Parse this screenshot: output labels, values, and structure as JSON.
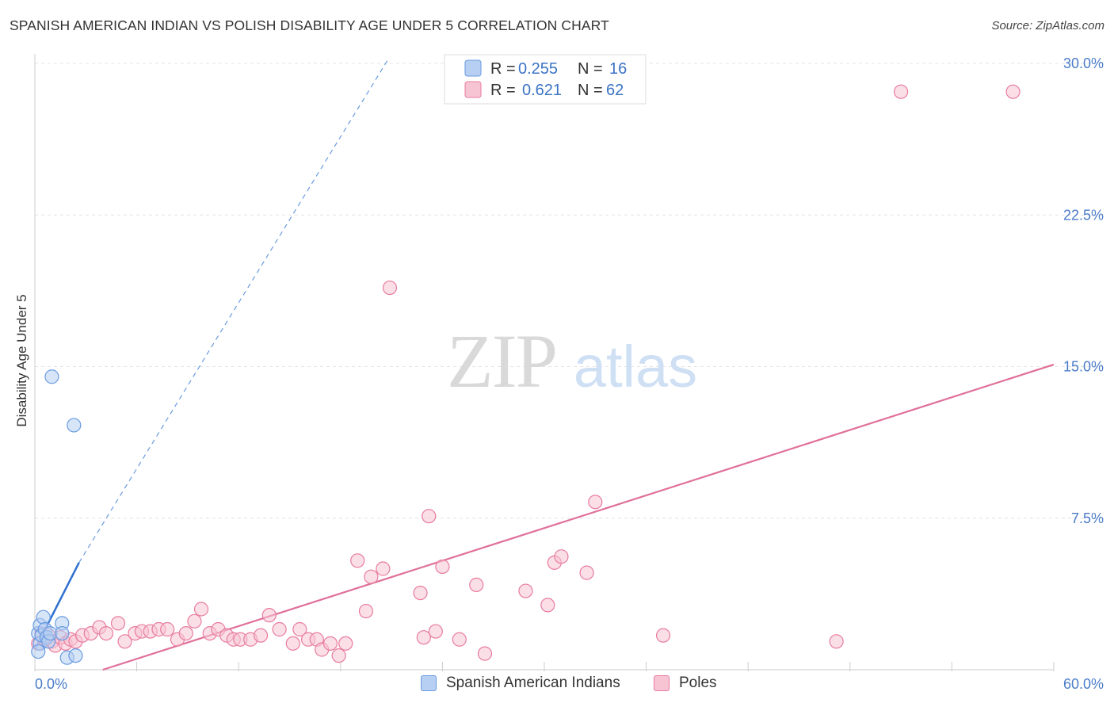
{
  "title": "SPANISH AMERICAN INDIAN VS POLISH DISABILITY AGE UNDER 5 CORRELATION CHART",
  "source": "Source: ZipAtlas.com",
  "watermark": {
    "zip": "ZIP",
    "atlas": "atlas"
  },
  "legend": {
    "r_label": "R =",
    "n_label": "N =",
    "series": [
      {
        "r": "0.255",
        "n": "16"
      },
      {
        "r": "0.621",
        "n": "62"
      }
    ]
  },
  "chart_data": {
    "type": "scatter",
    "title": "SPANISH AMERICAN INDIAN VS POLISH DISABILITY AGE UNDER 5 CORRELATION CHART",
    "xlabel": "",
    "ylabel": "Disability Age Under 5",
    "xlim": [
      0,
      60
    ],
    "ylim": [
      0,
      30
    ],
    "x_tick_labels": [
      "0.0%",
      "60.0%"
    ],
    "y_ticks": [
      7.5,
      15.0,
      22.5,
      30.0
    ],
    "y_tick_labels": [
      "7.5%",
      "15.0%",
      "22.5%",
      "30.0%"
    ],
    "grid": true,
    "legend_position": "top-center",
    "series": [
      {
        "name": "Spanish American Indians",
        "color": "#6a9be0",
        "fill": "#b7cff3",
        "trend": {
          "x0": 0,
          "y0": 1.0,
          "x1": 2.6,
          "y1": 5.3,
          "extend_to_x": 20.8,
          "extend_to_y": 30.2
        },
        "points": [
          {
            "x": 0.2,
            "y": 1.8
          },
          {
            "x": 0.3,
            "y": 2.2
          },
          {
            "x": 0.3,
            "y": 1.3
          },
          {
            "x": 0.5,
            "y": 2.6
          },
          {
            "x": 0.4,
            "y": 1.7
          },
          {
            "x": 0.6,
            "y": 2.0
          },
          {
            "x": 0.7,
            "y": 1.6
          },
          {
            "x": 0.8,
            "y": 1.4
          },
          {
            "x": 0.9,
            "y": 1.8
          },
          {
            "x": 1.0,
            "y": 14.5
          },
          {
            "x": 1.6,
            "y": 2.3
          },
          {
            "x": 1.6,
            "y": 1.8
          },
          {
            "x": 2.3,
            "y": 12.1
          },
          {
            "x": 1.9,
            "y": 0.6
          },
          {
            "x": 2.4,
            "y": 0.7
          },
          {
            "x": 0.2,
            "y": 0.9
          }
        ]
      },
      {
        "name": "Poles",
        "color": "#e87b9f",
        "fill": "#f7c4d4",
        "trend": {
          "x0": 4.0,
          "y0": 0.0,
          "x1": 60.0,
          "y1": 15.1
        },
        "points": [
          {
            "x": 0.2,
            "y": 1.3
          },
          {
            "x": 0.4,
            "y": 1.8
          },
          {
            "x": 0.6,
            "y": 1.5
          },
          {
            "x": 0.8,
            "y": 1.7
          },
          {
            "x": 1.0,
            "y": 1.4
          },
          {
            "x": 1.2,
            "y": 1.2
          },
          {
            "x": 1.5,
            "y": 1.6
          },
          {
            "x": 1.8,
            "y": 1.3
          },
          {
            "x": 2.1,
            "y": 1.5
          },
          {
            "x": 2.4,
            "y": 1.4
          },
          {
            "x": 2.8,
            "y": 1.7
          },
          {
            "x": 3.3,
            "y": 1.8
          },
          {
            "x": 3.8,
            "y": 2.1
          },
          {
            "x": 4.2,
            "y": 1.8
          },
          {
            "x": 4.9,
            "y": 2.3
          },
          {
            "x": 5.3,
            "y": 1.4
          },
          {
            "x": 5.9,
            "y": 1.8
          },
          {
            "x": 6.3,
            "y": 1.9
          },
          {
            "x": 6.8,
            "y": 1.9
          },
          {
            "x": 7.3,
            "y": 2.0
          },
          {
            "x": 7.8,
            "y": 2.0
          },
          {
            "x": 8.4,
            "y": 1.5
          },
          {
            "x": 8.9,
            "y": 1.8
          },
          {
            "x": 9.4,
            "y": 2.4
          },
          {
            "x": 9.8,
            "y": 3.0
          },
          {
            "x": 10.3,
            "y": 1.8
          },
          {
            "x": 10.8,
            "y": 2.0
          },
          {
            "x": 11.3,
            "y": 1.7
          },
          {
            "x": 11.7,
            "y": 1.5
          },
          {
            "x": 12.1,
            "y": 1.5
          },
          {
            "x": 12.7,
            "y": 1.5
          },
          {
            "x": 13.3,
            "y": 1.7
          },
          {
            "x": 13.8,
            "y": 2.7
          },
          {
            "x": 14.4,
            "y": 2.0
          },
          {
            "x": 15.2,
            "y": 1.3
          },
          {
            "x": 15.6,
            "y": 2.0
          },
          {
            "x": 16.1,
            "y": 1.5
          },
          {
            "x": 16.6,
            "y": 1.5
          },
          {
            "x": 16.9,
            "y": 1.0
          },
          {
            "x": 17.4,
            "y": 1.3
          },
          {
            "x": 17.9,
            "y": 0.7
          },
          {
            "x": 18.3,
            "y": 1.3
          },
          {
            "x": 19.0,
            "y": 5.4
          },
          {
            "x": 19.5,
            "y": 2.9
          },
          {
            "x": 19.8,
            "y": 4.6
          },
          {
            "x": 20.5,
            "y": 5.0
          },
          {
            "x": 20.9,
            "y": 18.9
          },
          {
            "x": 22.7,
            "y": 3.8
          },
          {
            "x": 22.9,
            "y": 1.6
          },
          {
            "x": 23.2,
            "y": 7.6
          },
          {
            "x": 23.6,
            "y": 1.9
          },
          {
            "x": 24.0,
            "y": 5.1
          },
          {
            "x": 25.0,
            "y": 1.5
          },
          {
            "x": 26.0,
            "y": 4.2
          },
          {
            "x": 26.5,
            "y": 0.8
          },
          {
            "x": 28.9,
            "y": 3.9
          },
          {
            "x": 30.2,
            "y": 3.2
          },
          {
            "x": 30.6,
            "y": 5.3
          },
          {
            "x": 31.0,
            "y": 5.6
          },
          {
            "x": 32.5,
            "y": 4.8
          },
          {
            "x": 33.0,
            "y": 8.3
          },
          {
            "x": 37.0,
            "y": 1.7
          }
        ],
        "extra_points": [
          {
            "x": 47.2,
            "y": 1.4
          },
          {
            "x": 51.0,
            "y": 28.6
          },
          {
            "x": 57.6,
            "y": 28.6
          }
        ]
      }
    ]
  }
}
